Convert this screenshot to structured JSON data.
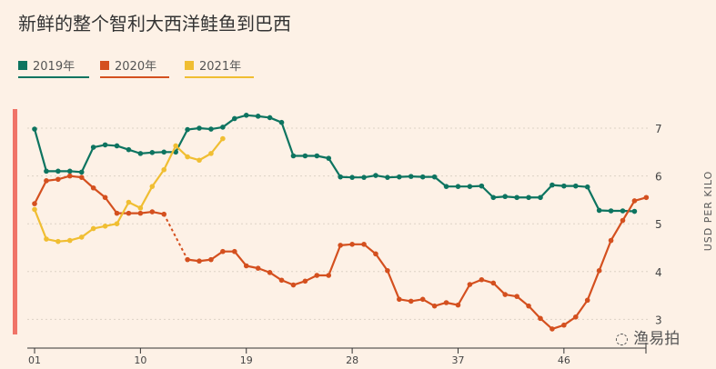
{
  "title": "新鲜的整个智利大西洋鲑鱼到巴西",
  "watermark": "渔易拍",
  "chart_data": {
    "type": "line",
    "title": "新鲜的整个智利大西洋鲑鱼到巴西",
    "xlabel": "",
    "ylabel": "USD PER KILO",
    "ylim": [
      2.7,
      7.5
    ],
    "xlim": [
      1,
      53
    ],
    "x_ticks": [
      "01",
      "10",
      "19",
      "28",
      "37",
      "46"
    ],
    "x_tick_values": [
      1,
      10,
      19,
      28,
      37,
      46
    ],
    "y_ticks": [
      3,
      4,
      5,
      6,
      7
    ],
    "grid": true,
    "legend": "top-left",
    "series": [
      {
        "name": "2019年",
        "color": "#0d7460",
        "start": 1,
        "values": [
          6.98,
          6.1,
          6.1,
          6.1,
          6.08,
          6.6,
          6.65,
          6.63,
          6.55,
          6.47,
          6.49,
          6.5,
          6.5,
          6.97,
          7.0,
          6.98,
          7.02,
          7.2,
          7.27,
          7.25,
          7.22,
          7.12,
          6.42,
          6.42,
          6.42,
          6.37,
          5.98,
          5.97,
          5.97,
          6.01,
          5.97,
          5.98,
          5.99,
          5.98,
          5.98,
          5.78,
          5.78,
          5.78,
          5.79,
          5.55,
          5.57,
          5.55,
          5.55,
          5.55,
          5.81,
          5.79,
          5.79,
          5.77,
          5.28,
          5.27,
          5.27,
          5.26
        ]
      },
      {
        "name": "2020年",
        "color": "#d4501f",
        "start": 1,
        "gap_week": 13,
        "values": [
          5.42,
          5.9,
          5.93,
          6.0,
          5.97,
          5.75,
          5.55,
          5.22,
          5.22,
          5.22,
          5.25,
          5.2,
          null,
          4.25,
          4.22,
          4.25,
          4.42,
          4.42,
          4.12,
          4.07,
          3.98,
          3.82,
          3.72,
          3.8,
          3.92,
          3.92,
          4.55,
          4.57,
          4.57,
          4.37,
          4.02,
          3.42,
          3.38,
          3.42,
          3.28,
          3.35,
          3.3,
          3.73,
          3.83,
          3.76,
          3.52,
          3.48,
          3.28,
          3.02,
          2.8,
          2.88,
          3.05,
          3.4,
          4.02,
          4.65,
          5.07,
          5.48,
          5.55
        ]
      },
      {
        "name": "2021年",
        "color": "#f0be32",
        "start": 1,
        "values": [
          5.3,
          4.68,
          4.63,
          4.65,
          4.72,
          4.9,
          4.95,
          5.0,
          5.45,
          5.33,
          5.78,
          6.13,
          6.63,
          6.4,
          6.33,
          6.47,
          6.78
        ]
      }
    ]
  }
}
